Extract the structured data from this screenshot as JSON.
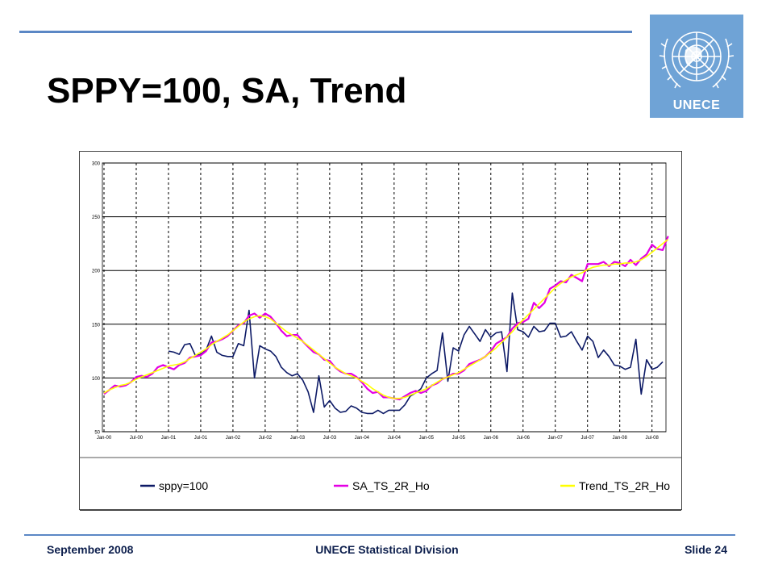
{
  "slide": {
    "title": "SPPY=100, SA, Trend",
    "logo_text": "UNECE",
    "footer_left": "September 2008",
    "footer_center": "UNECE Statistical Division",
    "footer_right": "Slide 24"
  },
  "colors": {
    "rule": "#5b87c5",
    "logo_bg": "#6fa3d6",
    "footer_text": "#0d1f4d"
  },
  "chart_data": {
    "type": "line",
    "title": "",
    "xlabel": "",
    "ylabel": "",
    "ylim": [
      50,
      300
    ],
    "yticks": [
      50,
      100,
      150,
      200,
      250,
      300
    ],
    "xticks": [
      "Jan-00",
      "Jul-00",
      "Jan-01",
      "Jul-01",
      "Jan-02",
      "Jul-02",
      "Jan-03",
      "Jul-03",
      "Jan-04",
      "Jul-04",
      "Jan-05",
      "Jul-05",
      "Jan-06",
      "Jul-06",
      "Jan-07",
      "Jul-07",
      "Jan-08",
      "Jul-08"
    ],
    "grid": "horizontal solid, vertical dashed",
    "legend_position": "bottom",
    "x_start": "2000-01",
    "series": [
      {
        "name": "sppy=100",
        "color": "#0d1a66",
        "values": [
          null,
          null,
          null,
          null,
          null,
          null,
          null,
          null,
          null,
          null,
          null,
          null,
          125,
          124,
          122,
          131,
          132,
          121,
          122,
          126,
          139,
          124,
          121,
          120,
          120,
          132,
          130,
          163,
          100,
          130,
          127,
          125,
          120,
          110,
          105,
          102,
          104,
          98,
          87,
          68,
          102,
          73,
          79,
          72,
          68,
          69,
          74,
          72,
          68,
          67,
          67,
          70,
          67,
          70,
          70,
          70,
          75,
          83,
          86,
          90,
          100,
          104,
          107,
          142,
          97,
          128,
          125,
          140,
          148,
          141,
          134,
          145,
          138,
          142,
          143,
          106,
          179,
          145,
          143,
          138,
          148,
          143,
          144,
          151,
          151,
          138,
          139,
          143,
          134,
          126,
          139,
          134,
          119,
          126,
          120,
          112,
          111,
          108,
          110,
          136,
          85,
          117,
          108,
          110,
          115
        ]
      },
      {
        "name": "SA_TS_2R_Ho",
        "color": "#e400e4",
        "values": [
          85,
          89,
          93,
          92,
          93,
          96,
          101,
          102,
          101,
          104,
          110,
          112,
          110,
          108,
          112,
          114,
          119,
          120,
          121,
          125,
          133,
          134,
          136,
          139,
          144,
          149,
          151,
          158,
          160,
          156,
          160,
          157,
          151,
          144,
          139,
          140,
          140,
          134,
          129,
          124,
          122,
          117,
          116,
          110,
          106,
          104,
          104,
          101,
          96,
          90,
          86,
          87,
          82,
          82,
          81,
          80,
          83,
          86,
          88,
          86,
          88,
          93,
          95,
          99,
          101,
          104,
          104,
          107,
          113,
          115,
          117,
          120,
          125,
          132,
          135,
          138,
          146,
          151,
          152,
          155,
          170,
          165,
          170,
          183,
          186,
          190,
          189,
          196,
          193,
          190,
          206,
          206,
          206,
          208,
          204,
          208,
          207,
          204,
          210,
          205,
          211,
          215,
          224,
          220,
          219,
          232
        ]
      },
      {
        "name": "Trend_TS_2R_Ho",
        "color": "#ffff00",
        "values": [
          86,
          89,
          91,
          93,
          94,
          96,
          99,
          101,
          103,
          105,
          107,
          109,
          111,
          112,
          113,
          115,
          118,
          121,
          124,
          127,
          131,
          134,
          137,
          140,
          144,
          148,
          152,
          155,
          157,
          158,
          157,
          155,
          151,
          147,
          143,
          140,
          137,
          134,
          130,
          126,
          122,
          118,
          114,
          110,
          107,
          104,
          102,
          100,
          97,
          94,
          90,
          87,
          84,
          82,
          81,
          81,
          82,
          84,
          86,
          88,
          90,
          93,
          96,
          99,
          101,
          103,
          105,
          108,
          111,
          114,
          117,
          120,
          124,
          128,
          133,
          138,
          143,
          149,
          154,
          159,
          164,
          169,
          174,
          179,
          184,
          188,
          191,
          194,
          196,
          198,
          201,
          203,
          204,
          205,
          205,
          206,
          206,
          207,
          207,
          208,
          210,
          213,
          217,
          221,
          225,
          229
        ]
      }
    ]
  }
}
